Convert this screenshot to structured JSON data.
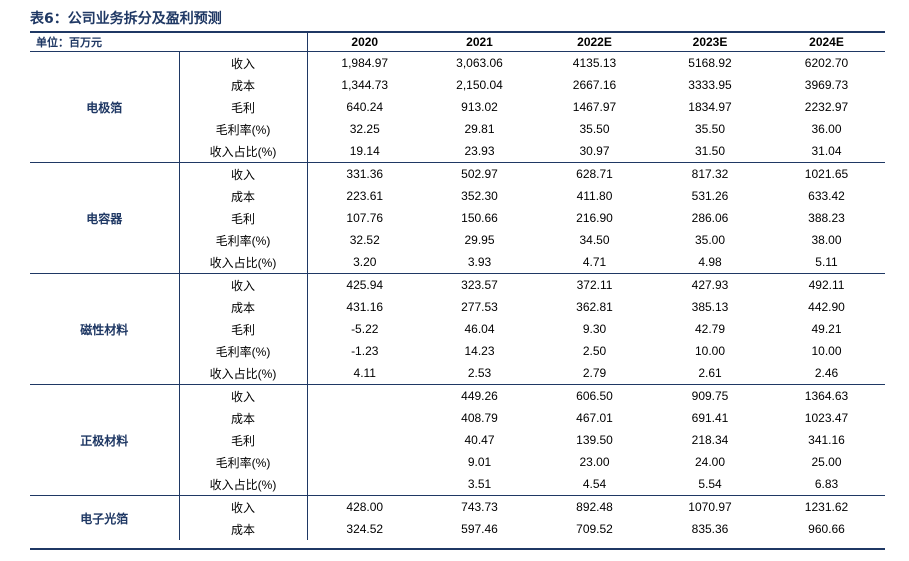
{
  "title": "表6：公司业务拆分及盈利预测",
  "unit_label": "单位：百万元",
  "years": [
    "2020",
    "2021",
    "2022E",
    "2023E",
    "2024E"
  ],
  "segments": [
    {
      "name": "电极箔",
      "rows": [
        {
          "metric": "收入",
          "values": [
            "1,984.97",
            "3,063.06",
            "4135.13",
            "5168.92",
            "6202.70"
          ]
        },
        {
          "metric": "成本",
          "values": [
            "1,344.73",
            "2,150.04",
            "2667.16",
            "3333.95",
            "3969.73"
          ]
        },
        {
          "metric": "毛利",
          "values": [
            "640.24",
            "913.02",
            "1467.97",
            "1834.97",
            "2232.97"
          ]
        },
        {
          "metric": "毛利率(%)",
          "values": [
            "32.25",
            "29.81",
            "35.50",
            "35.50",
            "36.00"
          ]
        },
        {
          "metric": "收入占比(%)",
          "values": [
            "19.14",
            "23.93",
            "30.97",
            "31.50",
            "31.04"
          ]
        }
      ]
    },
    {
      "name": "电容器",
      "rows": [
        {
          "metric": "收入",
          "values": [
            "331.36",
            "502.97",
            "628.71",
            "817.32",
            "1021.65"
          ]
        },
        {
          "metric": "成本",
          "values": [
            "223.61",
            "352.30",
            "411.80",
            "531.26",
            "633.42"
          ]
        },
        {
          "metric": "毛利",
          "values": [
            "107.76",
            "150.66",
            "216.90",
            "286.06",
            "388.23"
          ]
        },
        {
          "metric": "毛利率(%)",
          "values": [
            "32.52",
            "29.95",
            "34.50",
            "35.00",
            "38.00"
          ]
        },
        {
          "metric": "收入占比(%)",
          "values": [
            "3.20",
            "3.93",
            "4.71",
            "4.98",
            "5.11"
          ]
        }
      ]
    },
    {
      "name": "磁性材料",
      "rows": [
        {
          "metric": "收入",
          "values": [
            "425.94",
            "323.57",
            "372.11",
            "427.93",
            "492.11"
          ]
        },
        {
          "metric": "成本",
          "values": [
            "431.16",
            "277.53",
            "362.81",
            "385.13",
            "442.90"
          ]
        },
        {
          "metric": "毛利",
          "values": [
            "-5.22",
            "46.04",
            "9.30",
            "42.79",
            "49.21"
          ]
        },
        {
          "metric": "毛利率(%)",
          "values": [
            "-1.23",
            "14.23",
            "2.50",
            "10.00",
            "10.00"
          ]
        },
        {
          "metric": "收入占比(%)",
          "values": [
            "4.11",
            "2.53",
            "2.79",
            "2.61",
            "2.46"
          ]
        }
      ]
    },
    {
      "name": "正极材料",
      "rows": [
        {
          "metric": "收入",
          "values": [
            "",
            "449.26",
            "606.50",
            "909.75",
            "1364.63"
          ]
        },
        {
          "metric": "成本",
          "values": [
            "",
            "408.79",
            "467.01",
            "691.41",
            "1023.47"
          ]
        },
        {
          "metric": "毛利",
          "values": [
            "",
            "40.47",
            "139.50",
            "218.34",
            "341.16"
          ]
        },
        {
          "metric": "毛利率(%)",
          "values": [
            "",
            "9.01",
            "23.00",
            "24.00",
            "25.00"
          ]
        },
        {
          "metric": "收入占比(%)",
          "values": [
            "",
            "3.51",
            "4.54",
            "5.54",
            "6.83"
          ]
        }
      ]
    },
    {
      "name": "电子光箔",
      "rows": [
        {
          "metric": "收入",
          "values": [
            "428.00",
            "743.73",
            "892.48",
            "1070.97",
            "1231.62"
          ]
        },
        {
          "metric": "成本",
          "values": [
            "324.52",
            "597.46",
            "709.52",
            "835.36",
            "960.66"
          ]
        }
      ]
    }
  ]
}
